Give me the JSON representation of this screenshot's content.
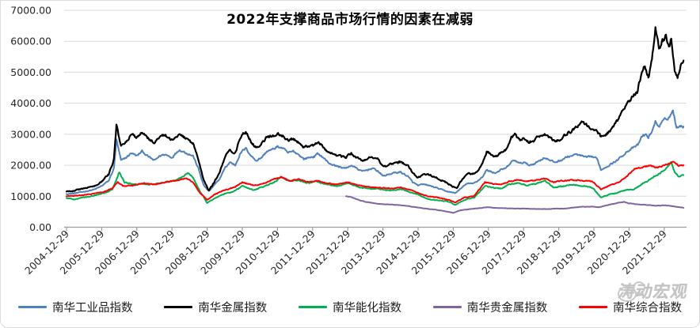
{
  "watermark": {
    "text": "涛动宏观",
    "icon": "chat-bubbles-icon"
  },
  "colors": {
    "background": "#ffffff",
    "grid": "#d9d9d9",
    "axis": "#9d9d9d",
    "watermark": "#b5b5b5"
  },
  "chart_data": {
    "type": "line",
    "title": "2022年支撑商品市场行情的因素在减弱",
    "xlabel": "",
    "ylabel": "",
    "ylim": [
      0,
      7000
    ],
    "y_tick_step": 1000,
    "y_ticks": [
      0,
      1000,
      2000,
      3000,
      4000,
      5000,
      6000,
      7000
    ],
    "y_tick_labels": [
      "0.00",
      "1000.00",
      "2000.00",
      "3000.00",
      "4000.00",
      "5000.00",
      "6000.00",
      "7000.00"
    ],
    "x_tick_labels": [
      "2004-12-29",
      "2005-12-29",
      "2006-12-29",
      "2007-12-29",
      "2008-12-29",
      "2009-12-29",
      "2010-12-29",
      "2011-12-29",
      "2012-12-29",
      "2013-12-29",
      "2014-12-29",
      "2015-12-29",
      "2016-12-29",
      "2017-12-29",
      "2018-12-29",
      "2019-12-29",
      "2020-12-29",
      "2021-12-29"
    ],
    "x_unit": "decimal_year",
    "x_range": [
      2005.0,
      2022.55
    ],
    "grid": "horizontal",
    "legend_position": "bottom",
    "series": [
      {
        "key": "industrial",
        "name": "南华工业品指数",
        "color": "#4F81BD",
        "x": [
          2005.0,
          2005.2,
          2005.4,
          2005.6,
          2005.8,
          2006.0,
          2006.2,
          2006.35,
          2006.42,
          2006.55,
          2006.7,
          2006.85,
          2007.0,
          2007.15,
          2007.3,
          2007.5,
          2007.65,
          2007.8,
          2008.0,
          2008.2,
          2008.4,
          2008.6,
          2008.75,
          2008.9,
          2009.05,
          2009.2,
          2009.35,
          2009.5,
          2009.65,
          2009.8,
          2009.95,
          2010.1,
          2010.25,
          2010.4,
          2010.55,
          2010.7,
          2010.85,
          2011.0,
          2011.15,
          2011.3,
          2011.45,
          2011.6,
          2011.75,
          2011.9,
          2012.05,
          2012.15,
          2012.3,
          2012.45,
          2012.6,
          2012.75,
          2012.95,
          2013.1,
          2013.25,
          2013.4,
          2013.55,
          2013.7,
          2013.85,
          2014.0,
          2014.15,
          2014.3,
          2014.5,
          2014.7,
          2014.85,
          2015.0,
          2015.15,
          2015.3,
          2015.5,
          2015.7,
          2015.85,
          2016.05,
          2016.25,
          2016.4,
          2016.55,
          2016.7,
          2016.85,
          2016.95,
          2017.05,
          2017.2,
          2017.35,
          2017.5,
          2017.65,
          2017.75,
          2017.9,
          2018.0,
          2018.15,
          2018.3,
          2018.45,
          2018.6,
          2018.75,
          2018.9,
          2019.05,
          2019.2,
          2019.35,
          2019.5,
          2019.65,
          2019.8,
          2019.95,
          2020.1,
          2020.2,
          2020.35,
          2020.5,
          2020.65,
          2020.8,
          2020.95,
          2021.1,
          2021.25,
          2021.35,
          2021.45,
          2021.55,
          2021.65,
          2021.75,
          2021.85,
          2021.95,
          2022.05,
          2022.15,
          2022.25,
          2022.35,
          2022.45,
          2022.55
        ],
        "values": [
          1070,
          1090,
          1130,
          1170,
          1220,
          1330,
          1500,
          1900,
          2820,
          2150,
          2250,
          2400,
          2300,
          2450,
          2300,
          2150,
          2300,
          2350,
          2250,
          2500,
          2400,
          2300,
          1900,
          1350,
          1160,
          1350,
          1550,
          1900,
          2100,
          2000,
          2400,
          2550,
          2300,
          2150,
          2250,
          2450,
          2500,
          2600,
          2550,
          2400,
          2450,
          2350,
          2200,
          2250,
          2280,
          2380,
          2250,
          2080,
          2000,
          1950,
          1900,
          2000,
          1900,
          1800,
          1850,
          1900,
          1820,
          1650,
          1700,
          1750,
          1780,
          1650,
          1450,
          1350,
          1380,
          1350,
          1280,
          1200,
          1150,
          1100,
          1280,
          1420,
          1400,
          1500,
          1650,
          1850,
          1800,
          1750,
          1850,
          1900,
          2100,
          2160,
          2050,
          2100,
          2000,
          2050,
          2150,
          2250,
          2150,
          2100,
          2150,
          2250,
          2300,
          2350,
          2300,
          2250,
          2280,
          2200,
          1850,
          1950,
          2050,
          2150,
          2300,
          2450,
          2550,
          2650,
          2900,
          3000,
          2900,
          3100,
          3400,
          3250,
          3400,
          3500,
          3550,
          3780,
          3180,
          3300,
          3250
        ]
      },
      {
        "key": "metal",
        "name": "南华金属指数",
        "color": "#000000",
        "x": [
          2005.0,
          2005.2,
          2005.4,
          2005.6,
          2005.8,
          2006.0,
          2006.2,
          2006.35,
          2006.42,
          2006.55,
          2006.7,
          2006.85,
          2007.0,
          2007.15,
          2007.3,
          2007.5,
          2007.65,
          2007.8,
          2008.0,
          2008.2,
          2008.4,
          2008.6,
          2008.75,
          2008.9,
          2009.05,
          2009.2,
          2009.35,
          2009.5,
          2009.65,
          2009.8,
          2009.95,
          2010.1,
          2010.25,
          2010.4,
          2010.55,
          2010.7,
          2010.85,
          2011.0,
          2011.15,
          2011.3,
          2011.45,
          2011.6,
          2011.75,
          2011.9,
          2012.05,
          2012.15,
          2012.3,
          2012.45,
          2012.6,
          2012.75,
          2012.95,
          2013.1,
          2013.25,
          2013.4,
          2013.55,
          2013.7,
          2013.85,
          2014.0,
          2014.15,
          2014.3,
          2014.5,
          2014.7,
          2014.85,
          2015.0,
          2015.15,
          2015.3,
          2015.5,
          2015.7,
          2015.85,
          2016.0,
          2016.1,
          2016.25,
          2016.4,
          2016.55,
          2016.7,
          2016.85,
          2016.95,
          2017.05,
          2017.2,
          2017.35,
          2017.5,
          2017.65,
          2017.75,
          2017.9,
          2018.0,
          2018.15,
          2018.3,
          2018.45,
          2018.6,
          2018.75,
          2018.9,
          2019.05,
          2019.2,
          2019.35,
          2019.5,
          2019.65,
          2019.8,
          2019.95,
          2020.1,
          2020.2,
          2020.35,
          2020.5,
          2020.65,
          2020.8,
          2020.95,
          2021.1,
          2021.25,
          2021.35,
          2021.45,
          2021.55,
          2021.65,
          2021.75,
          2021.85,
          2021.95,
          2022.05,
          2022.15,
          2022.2,
          2022.3,
          2022.38,
          2022.45,
          2022.55
        ],
        "values": [
          1150,
          1180,
          1230,
          1280,
          1330,
          1480,
          1700,
          2200,
          3280,
          2620,
          2750,
          2980,
          2900,
          3080,
          2900,
          2700,
          2900,
          2980,
          2800,
          3020,
          2850,
          2700,
          2200,
          1500,
          1180,
          1450,
          1750,
          2250,
          2500,
          2400,
          2900,
          3080,
          2750,
          2570,
          2700,
          2920,
          2940,
          3000,
          2950,
          2800,
          2850,
          2750,
          2580,
          2600,
          2650,
          2760,
          2600,
          2400,
          2350,
          2300,
          2250,
          2400,
          2250,
          2150,
          2200,
          2280,
          2200,
          1950,
          2000,
          2080,
          2100,
          2000,
          1750,
          1600,
          1690,
          1700,
          1600,
          1500,
          1400,
          1300,
          1260,
          1550,
          1750,
          1700,
          1800,
          2100,
          2450,
          2350,
          2250,
          2400,
          2500,
          2900,
          3000,
          2800,
          2900,
          2750,
          2800,
          2950,
          3000,
          2900,
          2760,
          2850,
          3000,
          3100,
          3250,
          3400,
          3300,
          3200,
          3100,
          2920,
          3000,
          3150,
          3400,
          3700,
          4000,
          4200,
          4400,
          5000,
          5250,
          4850,
          5400,
          6390,
          5850,
          6000,
          6150,
          5900,
          6100,
          5100,
          4750,
          5150,
          5380
        ]
      },
      {
        "key": "energy-chemical",
        "name": "南华能化指数",
        "color": "#00B050",
        "x": [
          2005.0,
          2005.2,
          2005.45,
          2005.7,
          2006.0,
          2006.3,
          2006.5,
          2006.65,
          2006.9,
          2007.2,
          2007.5,
          2007.8,
          2008.1,
          2008.45,
          2008.6,
          2008.8,
          2009.0,
          2009.25,
          2009.5,
          2009.75,
          2010.0,
          2010.3,
          2010.6,
          2010.9,
          2011.1,
          2011.35,
          2011.6,
          2011.9,
          2012.1,
          2012.4,
          2012.7,
          2013.0,
          2013.3,
          2013.6,
          2013.9,
          2014.2,
          2014.5,
          2014.8,
          2015.0,
          2015.3,
          2015.6,
          2015.9,
          2016.05,
          2016.3,
          2016.6,
          2016.9,
          2017.1,
          2017.35,
          2017.6,
          2017.85,
          2018.1,
          2018.35,
          2018.6,
          2018.85,
          2019.1,
          2019.4,
          2019.7,
          2019.95,
          2020.2,
          2020.45,
          2020.7,
          2020.95,
          2021.15,
          2021.4,
          2021.6,
          2021.8,
          2022.0,
          2022.2,
          2022.3,
          2022.4,
          2022.55
        ],
        "values": [
          940,
          900,
          950,
          1000,
          1080,
          1200,
          1780,
          1450,
          1380,
          1400,
          1380,
          1450,
          1500,
          1740,
          1600,
          1150,
          790,
          950,
          1080,
          1150,
          1330,
          1200,
          1300,
          1450,
          1620,
          1480,
          1520,
          1420,
          1480,
          1380,
          1330,
          1420,
          1300,
          1250,
          1230,
          1180,
          1230,
          1120,
          1050,
          900,
          870,
          820,
          720,
          880,
          960,
          1330,
          1280,
          1250,
          1380,
          1420,
          1350,
          1400,
          1520,
          1280,
          1320,
          1380,
          1330,
          1280,
          970,
          1060,
          1120,
          1220,
          1230,
          1420,
          1550,
          1690,
          1840,
          2100,
          1750,
          1640,
          1680
        ]
      },
      {
        "key": "precious-metal",
        "name": "南华贵金属指数",
        "color": "#8064A2",
        "x": [
          2012.95,
          2013.05,
          2013.2,
          2013.35,
          2013.5,
          2013.7,
          2013.9,
          2014.1,
          2014.3,
          2014.5,
          2014.7,
          2014.9,
          2015.1,
          2015.3,
          2015.5,
          2015.75,
          2016.0,
          2016.2,
          2016.45,
          2016.7,
          2016.95,
          2017.2,
          2017.45,
          2017.7,
          2017.95,
          2018.2,
          2018.45,
          2018.7,
          2018.95,
          2019.2,
          2019.45,
          2019.7,
          2019.95,
          2020.15,
          2020.3,
          2020.5,
          2020.7,
          2020.85,
          2021.0,
          2021.2,
          2021.4,
          2021.6,
          2021.8,
          2022.0,
          2022.15,
          2022.3,
          2022.4,
          2022.55
        ],
        "values": [
          1000,
          980,
          930,
          860,
          820,
          780,
          750,
          740,
          725,
          710,
          690,
          650,
          615,
          590,
          565,
          520,
          465,
          545,
          580,
          610,
          645,
          625,
          615,
          605,
          600,
          595,
          590,
          585,
          600,
          605,
          640,
          660,
          665,
          645,
          690,
          740,
          790,
          820,
          770,
          745,
          725,
          710,
          695,
          705,
          695,
          670,
          655,
          630
        ]
      },
      {
        "key": "composite",
        "name": "南华综合指数",
        "color": "#FF0000",
        "x": [
          2005.0,
          2005.3,
          2005.6,
          2006.0,
          2006.3,
          2006.45,
          2006.6,
          2006.9,
          2007.2,
          2007.5,
          2007.8,
          2008.1,
          2008.4,
          2008.6,
          2008.8,
          2009.0,
          2009.2,
          2009.5,
          2009.8,
          2010.0,
          2010.3,
          2010.6,
          2010.9,
          2011.1,
          2011.35,
          2011.6,
          2011.9,
          2012.1,
          2012.4,
          2012.7,
          2013.0,
          2013.3,
          2013.6,
          2013.9,
          2014.2,
          2014.5,
          2014.8,
          2015.0,
          2015.3,
          2015.6,
          2015.9,
          2016.05,
          2016.3,
          2016.6,
          2016.9,
          2017.1,
          2017.35,
          2017.6,
          2017.85,
          2018.1,
          2018.35,
          2018.6,
          2018.85,
          2019.1,
          2019.4,
          2019.7,
          2019.95,
          2020.2,
          2020.45,
          2020.7,
          2020.95,
          2021.15,
          2021.4,
          2021.6,
          2021.8,
          2022.0,
          2022.15,
          2022.25,
          2022.35,
          2022.45,
          2022.55
        ],
        "values": [
          1000,
          1020,
          1060,
          1120,
          1250,
          1450,
          1330,
          1350,
          1420,
          1380,
          1450,
          1500,
          1580,
          1450,
          1100,
          880,
          1050,
          1200,
          1300,
          1450,
          1350,
          1400,
          1550,
          1620,
          1500,
          1550,
          1450,
          1500,
          1420,
          1380,
          1450,
          1350,
          1300,
          1280,
          1250,
          1280,
          1200,
          1100,
          1000,
          950,
          870,
          800,
          950,
          1020,
          1450,
          1400,
          1380,
          1480,
          1520,
          1480,
          1520,
          1580,
          1450,
          1500,
          1520,
          1500,
          1480,
          1230,
          1350,
          1450,
          1650,
          1870,
          1950,
          1990,
          1930,
          2000,
          2050,
          2120,
          2020,
          1980,
          2000
        ]
      }
    ]
  }
}
